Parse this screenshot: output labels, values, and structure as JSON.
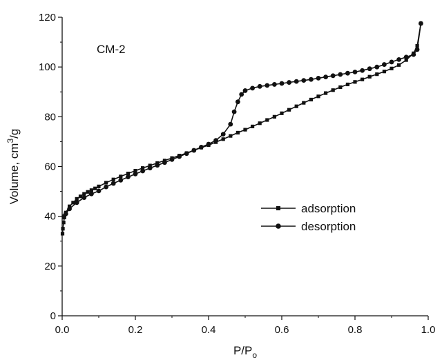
{
  "chart_data": {
    "type": "line",
    "title": "",
    "annotation": "CM-2",
    "xlabel": "P/P",
    "xlabel_sub": "o",
    "ylabel": "Volume, cm",
    "ylabel_sup": "3",
    "ylabel_tail": "/g",
    "xlim": [
      0.0,
      1.0
    ],
    "ylim": [
      0,
      120
    ],
    "xticks": [
      0.0,
      0.2,
      0.4,
      0.6,
      0.8,
      1.0
    ],
    "xtick_labels": [
      "0.0",
      "0.2",
      "0.4",
      "0.6",
      "0.8",
      "1.0"
    ],
    "yticks": [
      0,
      20,
      40,
      60,
      80,
      100,
      120
    ],
    "ytick_labels": [
      "0",
      "20",
      "40",
      "60",
      "80",
      "100",
      "120"
    ],
    "grid": false,
    "legend_position": "center-right",
    "line_color": "#111111",
    "series": [
      {
        "name": "adsorption",
        "marker": "square",
        "x": [
          0.001,
          0.002,
          0.004,
          0.006,
          0.01,
          0.02,
          0.03,
          0.04,
          0.05,
          0.06,
          0.07,
          0.08,
          0.09,
          0.1,
          0.12,
          0.14,
          0.16,
          0.18,
          0.2,
          0.22,
          0.24,
          0.26,
          0.28,
          0.3,
          0.32,
          0.34,
          0.36,
          0.38,
          0.4,
          0.42,
          0.44,
          0.46,
          0.48,
          0.5,
          0.52,
          0.54,
          0.56,
          0.58,
          0.6,
          0.62,
          0.64,
          0.66,
          0.68,
          0.7,
          0.72,
          0.74,
          0.76,
          0.78,
          0.8,
          0.82,
          0.84,
          0.86,
          0.88,
          0.9,
          0.92,
          0.94,
          0.96,
          0.97,
          0.98
        ],
        "values": [
          33.0,
          35.0,
          37.5,
          39.5,
          41.5,
          44.0,
          45.5,
          47.0,
          48.0,
          49.0,
          49.8,
          50.5,
          51.2,
          52.0,
          53.5,
          54.8,
          56.0,
          57.2,
          58.3,
          59.4,
          60.4,
          61.4,
          62.4,
          63.4,
          64.4,
          65.4,
          66.5,
          67.6,
          68.6,
          69.8,
          71.0,
          72.3,
          73.6,
          74.8,
          76.1,
          77.4,
          78.7,
          80.0,
          81.4,
          82.8,
          84.2,
          85.6,
          86.9,
          88.2,
          89.5,
          90.7,
          91.9,
          93.0,
          94.0,
          95.0,
          96.1,
          97.1,
          98.2,
          99.4,
          100.8,
          102.8,
          105.5,
          108.5,
          117.5
        ]
      },
      {
        "name": "desorption",
        "marker": "circle",
        "x": [
          0.98,
          0.97,
          0.96,
          0.94,
          0.92,
          0.9,
          0.88,
          0.86,
          0.84,
          0.82,
          0.8,
          0.78,
          0.76,
          0.74,
          0.72,
          0.7,
          0.68,
          0.66,
          0.64,
          0.62,
          0.6,
          0.58,
          0.56,
          0.54,
          0.52,
          0.5,
          0.49,
          0.48,
          0.47,
          0.46,
          0.44,
          0.42,
          0.4,
          0.38,
          0.36,
          0.34,
          0.32,
          0.3,
          0.28,
          0.26,
          0.24,
          0.22,
          0.2,
          0.18,
          0.16,
          0.14,
          0.12,
          0.1,
          0.08,
          0.06,
          0.04,
          0.02,
          0.01,
          0.005
        ],
        "values": [
          117.5,
          107.0,
          105.0,
          104.0,
          103.0,
          102.0,
          101.0,
          100.0,
          99.3,
          98.6,
          98.0,
          97.5,
          97.0,
          96.5,
          96.0,
          95.5,
          95.0,
          94.6,
          94.2,
          93.8,
          93.4,
          93.0,
          92.6,
          92.2,
          91.5,
          90.5,
          89.0,
          86.0,
          82.0,
          77.0,
          73.0,
          70.5,
          69.0,
          67.8,
          66.5,
          65.2,
          64.0,
          62.8,
          61.6,
          60.5,
          59.4,
          58.2,
          57.0,
          55.8,
          54.5,
          53.2,
          51.8,
          50.2,
          49.0,
          47.5,
          45.5,
          43.0,
          41.0,
          40.0
        ]
      }
    ]
  }
}
